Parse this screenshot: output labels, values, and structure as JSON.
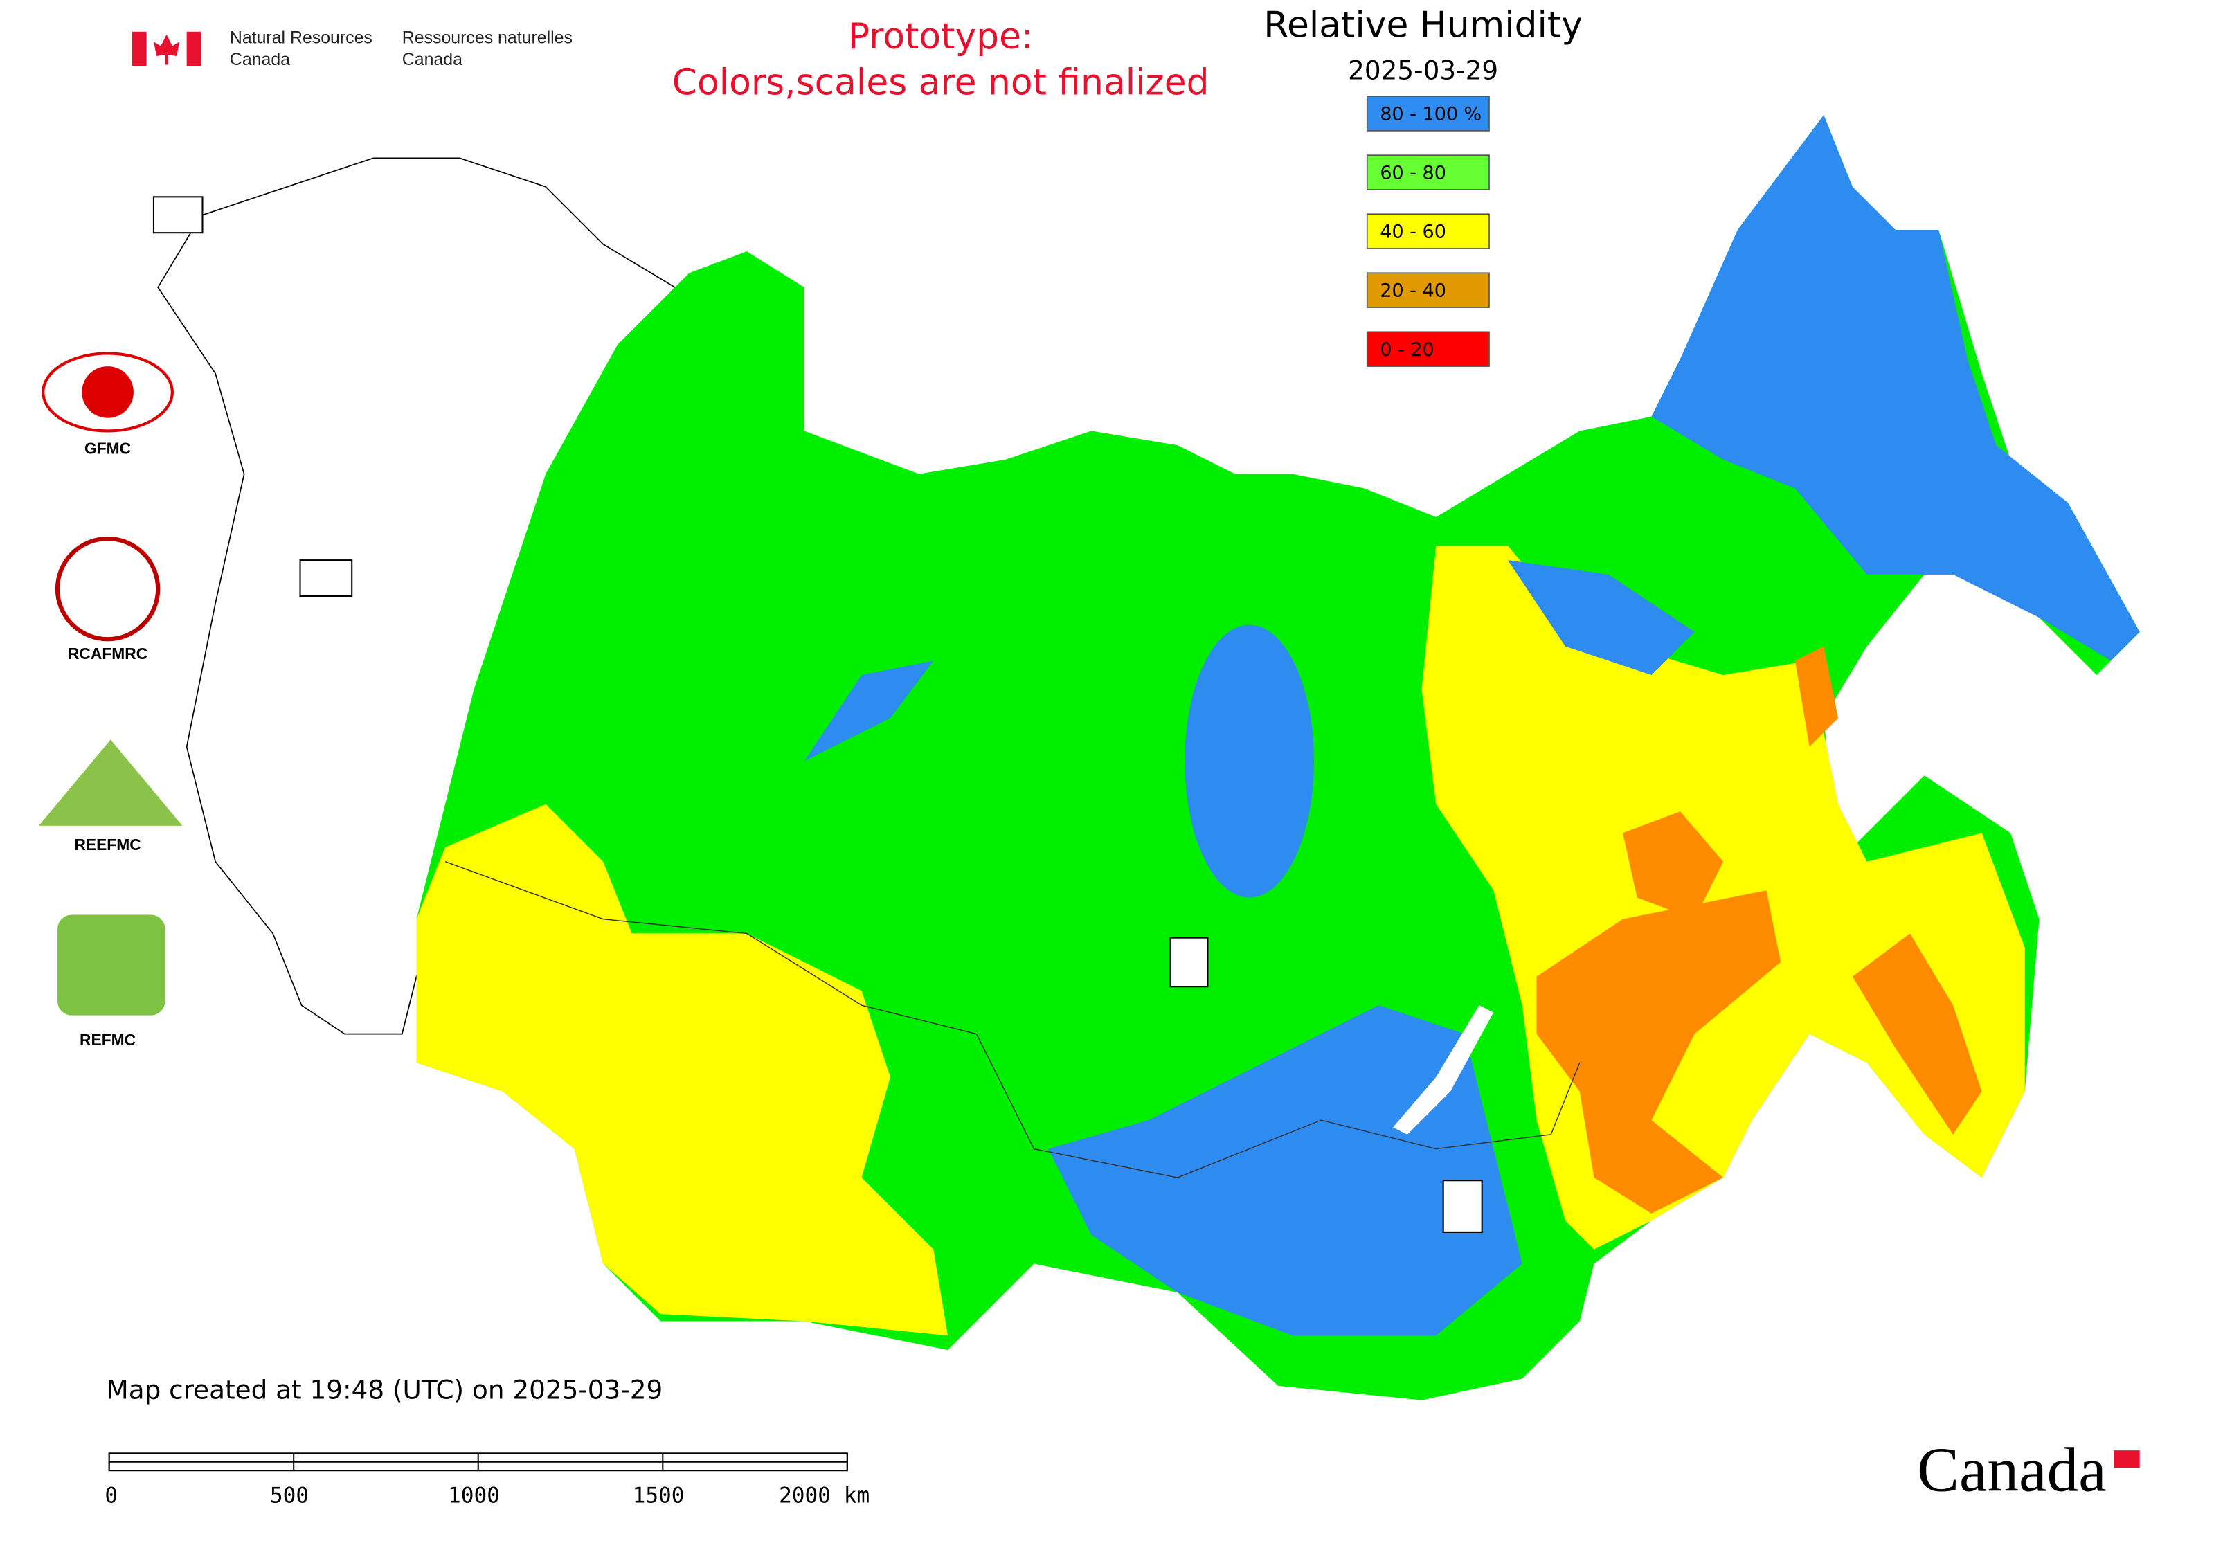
{
  "header": {
    "agency_en": [
      "Natural Resources",
      "Canada"
    ],
    "agency_fr": [
      "Ressources naturelles",
      "Canada"
    ],
    "notice": [
      "Prototype:",
      "Colors,scales are not finalized"
    ],
    "title": "Relative Humidity",
    "date": "2025-03-29"
  },
  "legend": [
    {
      "label": "80 - 100 %",
      "color": "#2e8cf0"
    },
    {
      "label": "60 - 80",
      "color": "#66ff33"
    },
    {
      "label": "40 - 60",
      "color": "#ffff00"
    },
    {
      "label": "20 - 40",
      "color": "#e09a00"
    },
    {
      "label": "0 - 20",
      "color": "#ff0000"
    }
  ],
  "logos": [
    "GFMC",
    "RCAFMRC",
    "REEFMC",
    "REFMC"
  ],
  "footer": {
    "created": "Map created at 19:48 (UTC) on 2025-03-29",
    "scale_labels": [
      "0",
      "500",
      "1000",
      "1500",
      "2000 km"
    ],
    "wordmark": "Canada"
  }
}
